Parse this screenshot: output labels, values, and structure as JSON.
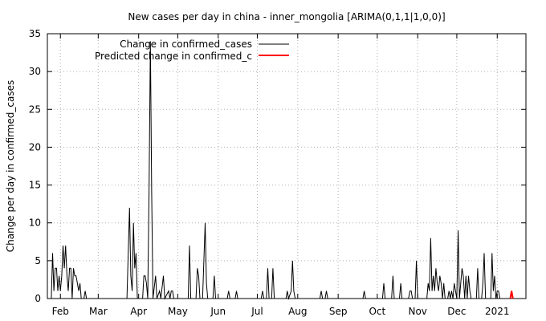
{
  "chart_data": {
    "type": "line",
    "title": "New cases per day in china - inner_mongolia [ARIMA(0,1,1|1,0,0)]",
    "xlabel": "",
    "ylabel": "Change per day in confirmed_cases",
    "ylim": [
      0,
      35
    ],
    "yticks": [
      0,
      5,
      10,
      15,
      20,
      25,
      30,
      35
    ],
    "xlim": [
      "2020-01-22",
      "2021-01-23"
    ],
    "xticks": [
      {
        "label": "Feb",
        "date": "2020-02-01"
      },
      {
        "label": "Mar",
        "date": "2020-03-01"
      },
      {
        "label": "Apr",
        "date": "2020-04-01"
      },
      {
        "label": "May",
        "date": "2020-05-01"
      },
      {
        "label": "Jun",
        "date": "2020-06-01"
      },
      {
        "label": "Jul",
        "date": "2020-07-01"
      },
      {
        "label": "Aug",
        "date": "2020-08-01"
      },
      {
        "label": "Sep",
        "date": "2020-09-01"
      },
      {
        "label": "Oct",
        "date": "2020-10-01"
      },
      {
        "label": "Nov",
        "date": "2020-11-01"
      },
      {
        "label": "Dec",
        "date": "2020-12-01"
      },
      {
        "label": "2021",
        "date": "2021-01-01"
      }
    ],
    "grid": true,
    "legend_position": "top-left",
    "series": [
      {
        "name": "Change in confirmed_cases",
        "color": "#000000",
        "points": [
          [
            "2020-01-22",
            0
          ],
          [
            "2020-01-25",
            0
          ],
          [
            "2020-01-26",
            6
          ],
          [
            "2020-01-27",
            1
          ],
          [
            "2020-01-28",
            4
          ],
          [
            "2020-01-29",
            4
          ],
          [
            "2020-01-30",
            1
          ],
          [
            "2020-01-31",
            3
          ],
          [
            "2020-02-01",
            1
          ],
          [
            "2020-02-02",
            3
          ],
          [
            "2020-02-03",
            7
          ],
          [
            "2020-02-04",
            4
          ],
          [
            "2020-02-05",
            7
          ],
          [
            "2020-02-06",
            3
          ],
          [
            "2020-02-07",
            1
          ],
          [
            "2020-02-08",
            4
          ],
          [
            "2020-02-09",
            4
          ],
          [
            "2020-02-10",
            0
          ],
          [
            "2020-02-11",
            4
          ],
          [
            "2020-02-12",
            3
          ],
          [
            "2020-02-13",
            3
          ],
          [
            "2020-02-14",
            2
          ],
          [
            "2020-02-15",
            1
          ],
          [
            "2020-02-16",
            2
          ],
          [
            "2020-02-17",
            0
          ],
          [
            "2020-02-19",
            0
          ],
          [
            "2020-02-20",
            1
          ],
          [
            "2020-02-21",
            0
          ],
          [
            "2020-03-23",
            0
          ],
          [
            "2020-03-25",
            12
          ],
          [
            "2020-03-26",
            3
          ],
          [
            "2020-03-27",
            1
          ],
          [
            "2020-03-28",
            10
          ],
          [
            "2020-03-29",
            4
          ],
          [
            "2020-03-30",
            6
          ],
          [
            "2020-03-31",
            0
          ],
          [
            "2020-04-04",
            0
          ],
          [
            "2020-04-05",
            3
          ],
          [
            "2020-04-06",
            3
          ],
          [
            "2020-04-07",
            2
          ],
          [
            "2020-04-08",
            0
          ],
          [
            "2020-04-09",
            15
          ],
          [
            "2020-04-10",
            34
          ],
          [
            "2020-04-11",
            14
          ],
          [
            "2020-04-12",
            0
          ],
          [
            "2020-04-14",
            3
          ],
          [
            "2020-04-15",
            0
          ],
          [
            "2020-04-17",
            1
          ],
          [
            "2020-04-18",
            0
          ],
          [
            "2020-04-20",
            3
          ],
          [
            "2020-04-21",
            0
          ],
          [
            "2020-04-24",
            1
          ],
          [
            "2020-04-25",
            0
          ],
          [
            "2020-04-26",
            1
          ],
          [
            "2020-04-27",
            1
          ],
          [
            "2020-04-28",
            0
          ],
          [
            "2020-05-09",
            0
          ],
          [
            "2020-05-10",
            7
          ],
          [
            "2020-05-11",
            0
          ],
          [
            "2020-05-15",
            0
          ],
          [
            "2020-05-16",
            4
          ],
          [
            "2020-05-17",
            3
          ],
          [
            "2020-05-18",
            0
          ],
          [
            "2020-05-20",
            0
          ],
          [
            "2020-05-22",
            10
          ],
          [
            "2020-05-23",
            2
          ],
          [
            "2020-05-24",
            0
          ],
          [
            "2020-05-28",
            0
          ],
          [
            "2020-05-29",
            3
          ],
          [
            "2020-05-30",
            0
          ],
          [
            "2020-06-08",
            0
          ],
          [
            "2020-06-09",
            1
          ],
          [
            "2020-06-10",
            0
          ],
          [
            "2020-06-14",
            0
          ],
          [
            "2020-06-15",
            1
          ],
          [
            "2020-06-16",
            0
          ],
          [
            "2020-07-04",
            0
          ],
          [
            "2020-07-05",
            1
          ],
          [
            "2020-07-06",
            0
          ],
          [
            "2020-07-08",
            0
          ],
          [
            "2020-07-09",
            4
          ],
          [
            "2020-07-10",
            0
          ],
          [
            "2020-07-12",
            0
          ],
          [
            "2020-07-13",
            4
          ],
          [
            "2020-07-14",
            0
          ],
          [
            "2020-07-23",
            0
          ],
          [
            "2020-07-24",
            1
          ],
          [
            "2020-07-25",
            0
          ],
          [
            "2020-07-27",
            1
          ],
          [
            "2020-07-28",
            5
          ],
          [
            "2020-07-29",
            1
          ],
          [
            "2020-07-30",
            0
          ],
          [
            "2020-08-18",
            0
          ],
          [
            "2020-08-19",
            1
          ],
          [
            "2020-08-20",
            0
          ],
          [
            "2020-08-22",
            0
          ],
          [
            "2020-08-23",
            1
          ],
          [
            "2020-08-24",
            0
          ],
          [
            "2020-09-20",
            0
          ],
          [
            "2020-09-21",
            1
          ],
          [
            "2020-09-22",
            0
          ],
          [
            "2020-10-05",
            0
          ],
          [
            "2020-10-06",
            2
          ],
          [
            "2020-10-07",
            0
          ],
          [
            "2020-10-12",
            0
          ],
          [
            "2020-10-13",
            3
          ],
          [
            "2020-10-14",
            0
          ],
          [
            "2020-10-18",
            0
          ],
          [
            "2020-10-19",
            2
          ],
          [
            "2020-10-20",
            0
          ],
          [
            "2020-10-25",
            0
          ],
          [
            "2020-10-26",
            1
          ],
          [
            "2020-10-27",
            1
          ],
          [
            "2020-10-28",
            0
          ],
          [
            "2020-10-30",
            0
          ],
          [
            "2020-10-31",
            5
          ],
          [
            "2020-11-01",
            0
          ],
          [
            "2020-11-08",
            0
          ],
          [
            "2020-11-09",
            2
          ],
          [
            "2020-11-10",
            1
          ],
          [
            "2020-11-11",
            8
          ],
          [
            "2020-11-12",
            1
          ],
          [
            "2020-11-13",
            3
          ],
          [
            "2020-11-14",
            1
          ],
          [
            "2020-11-15",
            4
          ],
          [
            "2020-11-16",
            2
          ],
          [
            "2020-11-17",
            1
          ],
          [
            "2020-11-18",
            3
          ],
          [
            "2020-11-19",
            2
          ],
          [
            "2020-11-20",
            0
          ],
          [
            "2020-11-21",
            2
          ],
          [
            "2020-11-22",
            0
          ],
          [
            "2020-11-24",
            0
          ],
          [
            "2020-11-25",
            1
          ],
          [
            "2020-11-26",
            0
          ],
          [
            "2020-11-27",
            1
          ],
          [
            "2020-11-28",
            0
          ],
          [
            "2020-11-29",
            2
          ],
          [
            "2020-11-30",
            1
          ],
          [
            "2020-12-01",
            0
          ],
          [
            "2020-12-02",
            9
          ],
          [
            "2020-12-03",
            0
          ],
          [
            "2020-12-04",
            2
          ],
          [
            "2020-12-05",
            4
          ],
          [
            "2020-12-06",
            3
          ],
          [
            "2020-12-07",
            0
          ],
          [
            "2020-12-08",
            3
          ],
          [
            "2020-12-09",
            0
          ],
          [
            "2020-12-10",
            3
          ],
          [
            "2020-12-11",
            1
          ],
          [
            "2020-12-12",
            0
          ],
          [
            "2020-12-16",
            0
          ],
          [
            "2020-12-17",
            4
          ],
          [
            "2020-12-18",
            0
          ],
          [
            "2020-12-20",
            0
          ],
          [
            "2020-12-21",
            2
          ],
          [
            "2020-12-22",
            6
          ],
          [
            "2020-12-23",
            0
          ],
          [
            "2020-12-27",
            0
          ],
          [
            "2020-12-28",
            6
          ],
          [
            "2020-12-29",
            1
          ],
          [
            "2020-12-30",
            3
          ],
          [
            "2020-12-31",
            0
          ],
          [
            "2021-01-01",
            1
          ],
          [
            "2021-01-02",
            1
          ],
          [
            "2021-01-03",
            0
          ],
          [
            "2021-01-05",
            0
          ]
        ]
      },
      {
        "name": "Predicted change in confirmed_c",
        "color": "#ff0000",
        "points": [
          [
            "2021-01-11",
            0
          ],
          [
            "2021-01-12",
            1
          ],
          [
            "2021-01-13",
            0
          ]
        ]
      }
    ]
  }
}
